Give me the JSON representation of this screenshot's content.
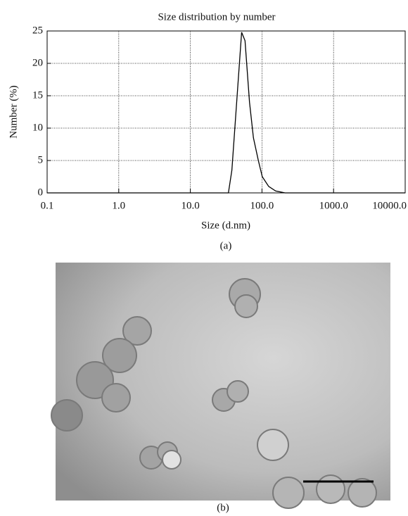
{
  "chart_data": {
    "type": "line",
    "title": "Size distribution by number",
    "x_label": "Size (d.nm)",
    "y_label": "Number (%)",
    "x": [
      0.1,
      34,
      38,
      45,
      52,
      58,
      67,
      76,
      89,
      101,
      124,
      155,
      210,
      10000
    ],
    "values": [
      0,
      0,
      3.5,
      15,
      24.8,
      23.5,
      14,
      8.5,
      5,
      2.5,
      1,
      0.3,
      0,
      0
    ],
    "color": "#000000",
    "xscale": "log",
    "grid": true,
    "xlim": [
      0.1,
      10000
    ],
    "ylim": [
      0,
      25
    ],
    "xticks": [
      0.1,
      {
        "value": 1,
        "label": "1.0"
      },
      {
        "value": 10,
        "label": "10.0"
      },
      {
        "value": 100,
        "label": "100.0"
      },
      {
        "value": 1000,
        "label": "1000.0"
      },
      {
        "value": 10000,
        "label": "10000.0"
      }
    ],
    "yticks": [
      0,
      5,
      10,
      15,
      20,
      25
    ]
  },
  "caption_a": "(a)",
  "caption_b": "(b)"
}
